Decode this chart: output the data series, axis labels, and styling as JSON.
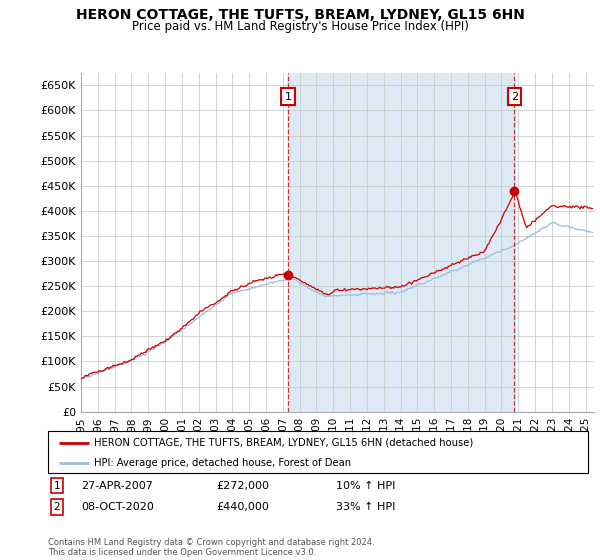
{
  "title": "HERON COTTAGE, THE TUFTS, BREAM, LYDNEY, GL15 6HN",
  "subtitle": "Price paid vs. HM Land Registry's House Price Index (HPI)",
  "ylabel_ticks": [
    "£0",
    "£50K",
    "£100K",
    "£150K",
    "£200K",
    "£250K",
    "£300K",
    "£350K",
    "£400K",
    "£450K",
    "£500K",
    "£550K",
    "£600K",
    "£650K"
  ],
  "ytick_values": [
    0,
    50000,
    100000,
    150000,
    200000,
    250000,
    300000,
    350000,
    400000,
    450000,
    500000,
    550000,
    600000,
    650000
  ],
  "ylim": [
    0,
    675000
  ],
  "xlim_start": 1995.0,
  "xlim_end": 2025.5,
  "hpi_color": "#9bbfdb",
  "price_color": "#cc0000",
  "shade_color": "#ddeaf5",
  "sale1_x": 2007.32,
  "sale1_y": 272000,
  "sale2_x": 2020.77,
  "sale2_y": 440000,
  "legend_label1": "HERON COTTAGE, THE TUFTS, BREAM, LYDNEY, GL15 6HN (detached house)",
  "legend_label2": "HPI: Average price, detached house, Forest of Dean",
  "annot1_date": "27-APR-2007",
  "annot1_price": "£272,000",
  "annot1_hpi": "10% ↑ HPI",
  "annot2_date": "08-OCT-2020",
  "annot2_price": "£440,000",
  "annot2_hpi": "33% ↑ HPI",
  "footer": "Contains HM Land Registry data © Crown copyright and database right 2024.\nThis data is licensed under the Open Government Licence v3.0.",
  "background_color": "#ffffff",
  "grid_color": "#cccccc",
  "title_fontsize": 10,
  "subtitle_fontsize": 8.5
}
